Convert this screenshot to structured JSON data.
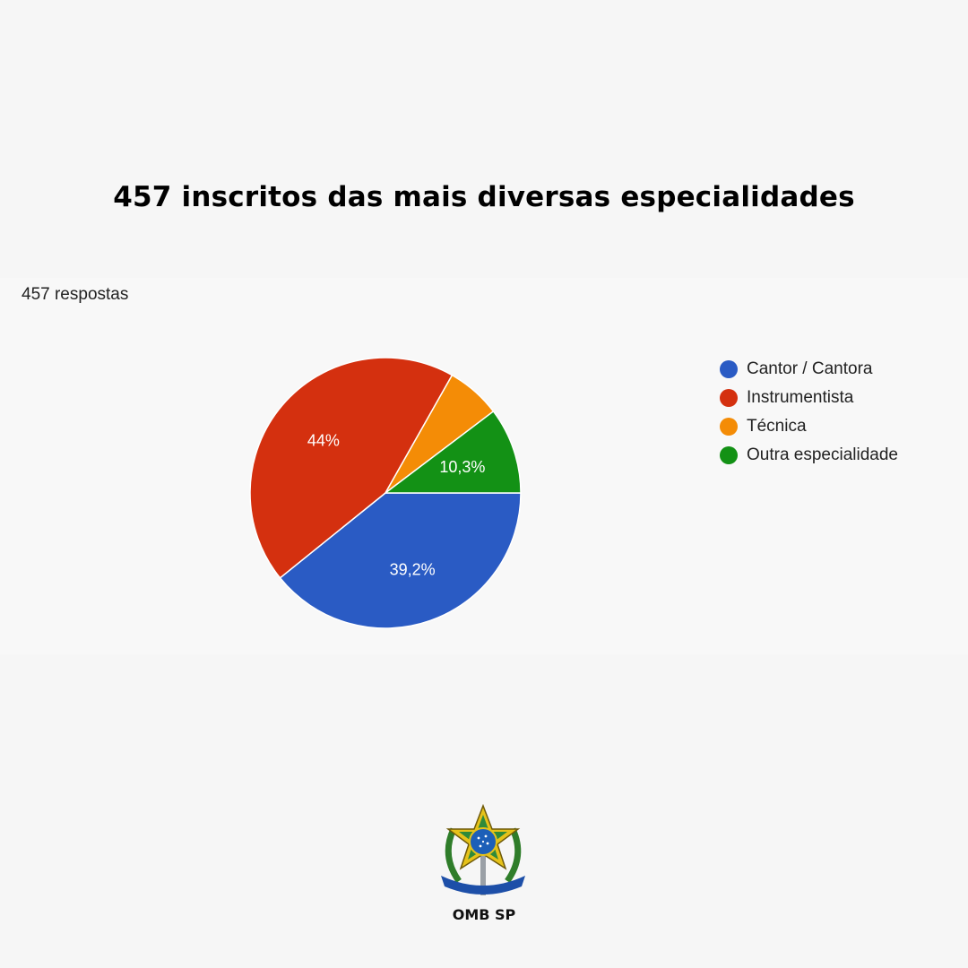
{
  "headline": "457 inscritos das mais diversas especialidades",
  "responses_label": "457 respostas",
  "chart_data": {
    "type": "pie",
    "start": "3 o'clock, counterclockwise order of legend reversed (drawn clockwise)",
    "slices": [
      {
        "label": "Cantor / Cantora",
        "value": 39.2,
        "display": "39,2%",
        "color": "#2a5bc4"
      },
      {
        "label": "Instrumentista",
        "value": 44.0,
        "display": "44%",
        "color": "#d4300f"
      },
      {
        "label": "Técnica",
        "value": 6.5,
        "display": "",
        "color": "#f48c06"
      },
      {
        "label": "Outra especialidade",
        "value": 10.3,
        "display": "10,3%",
        "color": "#139115"
      }
    ],
    "legend_position": "right"
  },
  "footer": {
    "org_label": "OMB SP"
  }
}
